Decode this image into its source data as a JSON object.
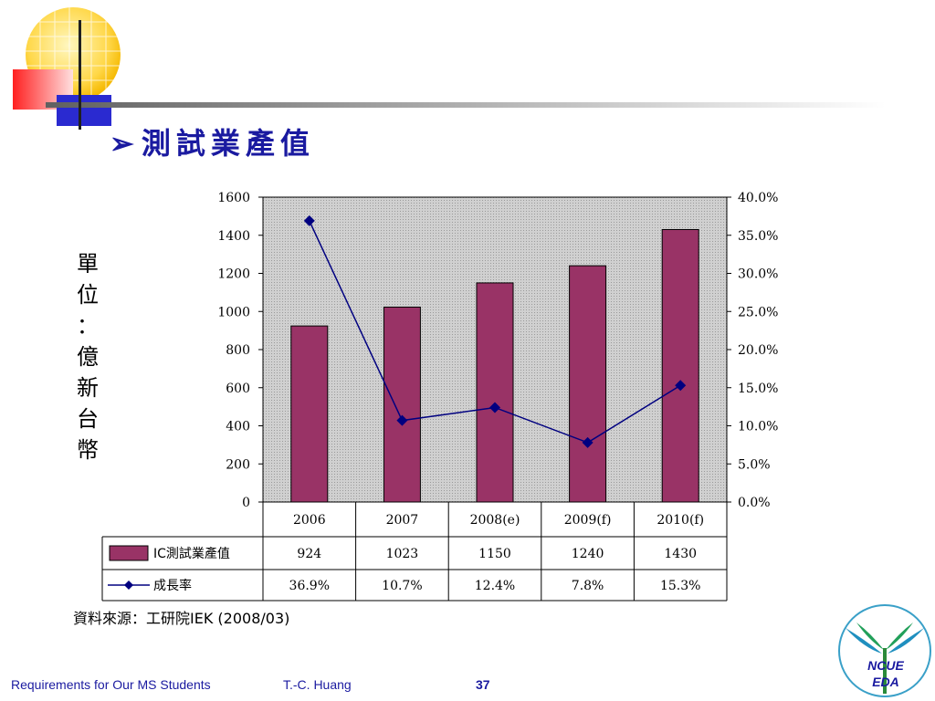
{
  "slide": {
    "title_arrow": "➢",
    "title": "測試業產值",
    "unit_label": [
      "單",
      "位",
      "：",
      "億",
      "新",
      "台",
      "幣"
    ],
    "source": "資料來源：工研院IEK (2008/03)",
    "footer": {
      "course": "Requirements for Our MS Students",
      "author": "T.-C. Huang",
      "page": "37"
    },
    "logo": {
      "line1": "NCUE",
      "line2": "EDA"
    }
  },
  "colors": {
    "bar": "#993366",
    "line": "#000080",
    "plot_bg": "#c0c0c0",
    "title": "#1a1aa0"
  },
  "chart_data": {
    "type": "bar",
    "categories": [
      "2006",
      "2007",
      "2008(e)",
      "2009(f)",
      "2010(f)"
    ],
    "series": [
      {
        "name": "IC測試業產值",
        "type": "bar",
        "axis": "left",
        "values": [
          924,
          1023,
          1150,
          1240,
          1430
        ],
        "labels": [
          "924",
          "1023",
          "1150",
          "1240",
          "1430"
        ]
      },
      {
        "name": "成長率",
        "type": "line",
        "axis": "right",
        "values": [
          36.9,
          10.7,
          12.4,
          7.8,
          15.3
        ],
        "labels": [
          "36.9%",
          "10.7%",
          "12.4%",
          "7.8%",
          "15.3%"
        ]
      }
    ],
    "y_left": {
      "ylim": [
        0,
        1600
      ],
      "ticks": [
        "0",
        "200",
        "400",
        "600",
        "800",
        "1000",
        "1200",
        "1400",
        "1600"
      ]
    },
    "y_right": {
      "ylim": [
        0,
        40
      ],
      "ticks": [
        "0.0%",
        "5.0%",
        "10.0%",
        "15.0%",
        "20.0%",
        "25.0%",
        "30.0%",
        "35.0%",
        "40.0%"
      ]
    },
    "grid": false,
    "legend": "data-table-bottom"
  }
}
